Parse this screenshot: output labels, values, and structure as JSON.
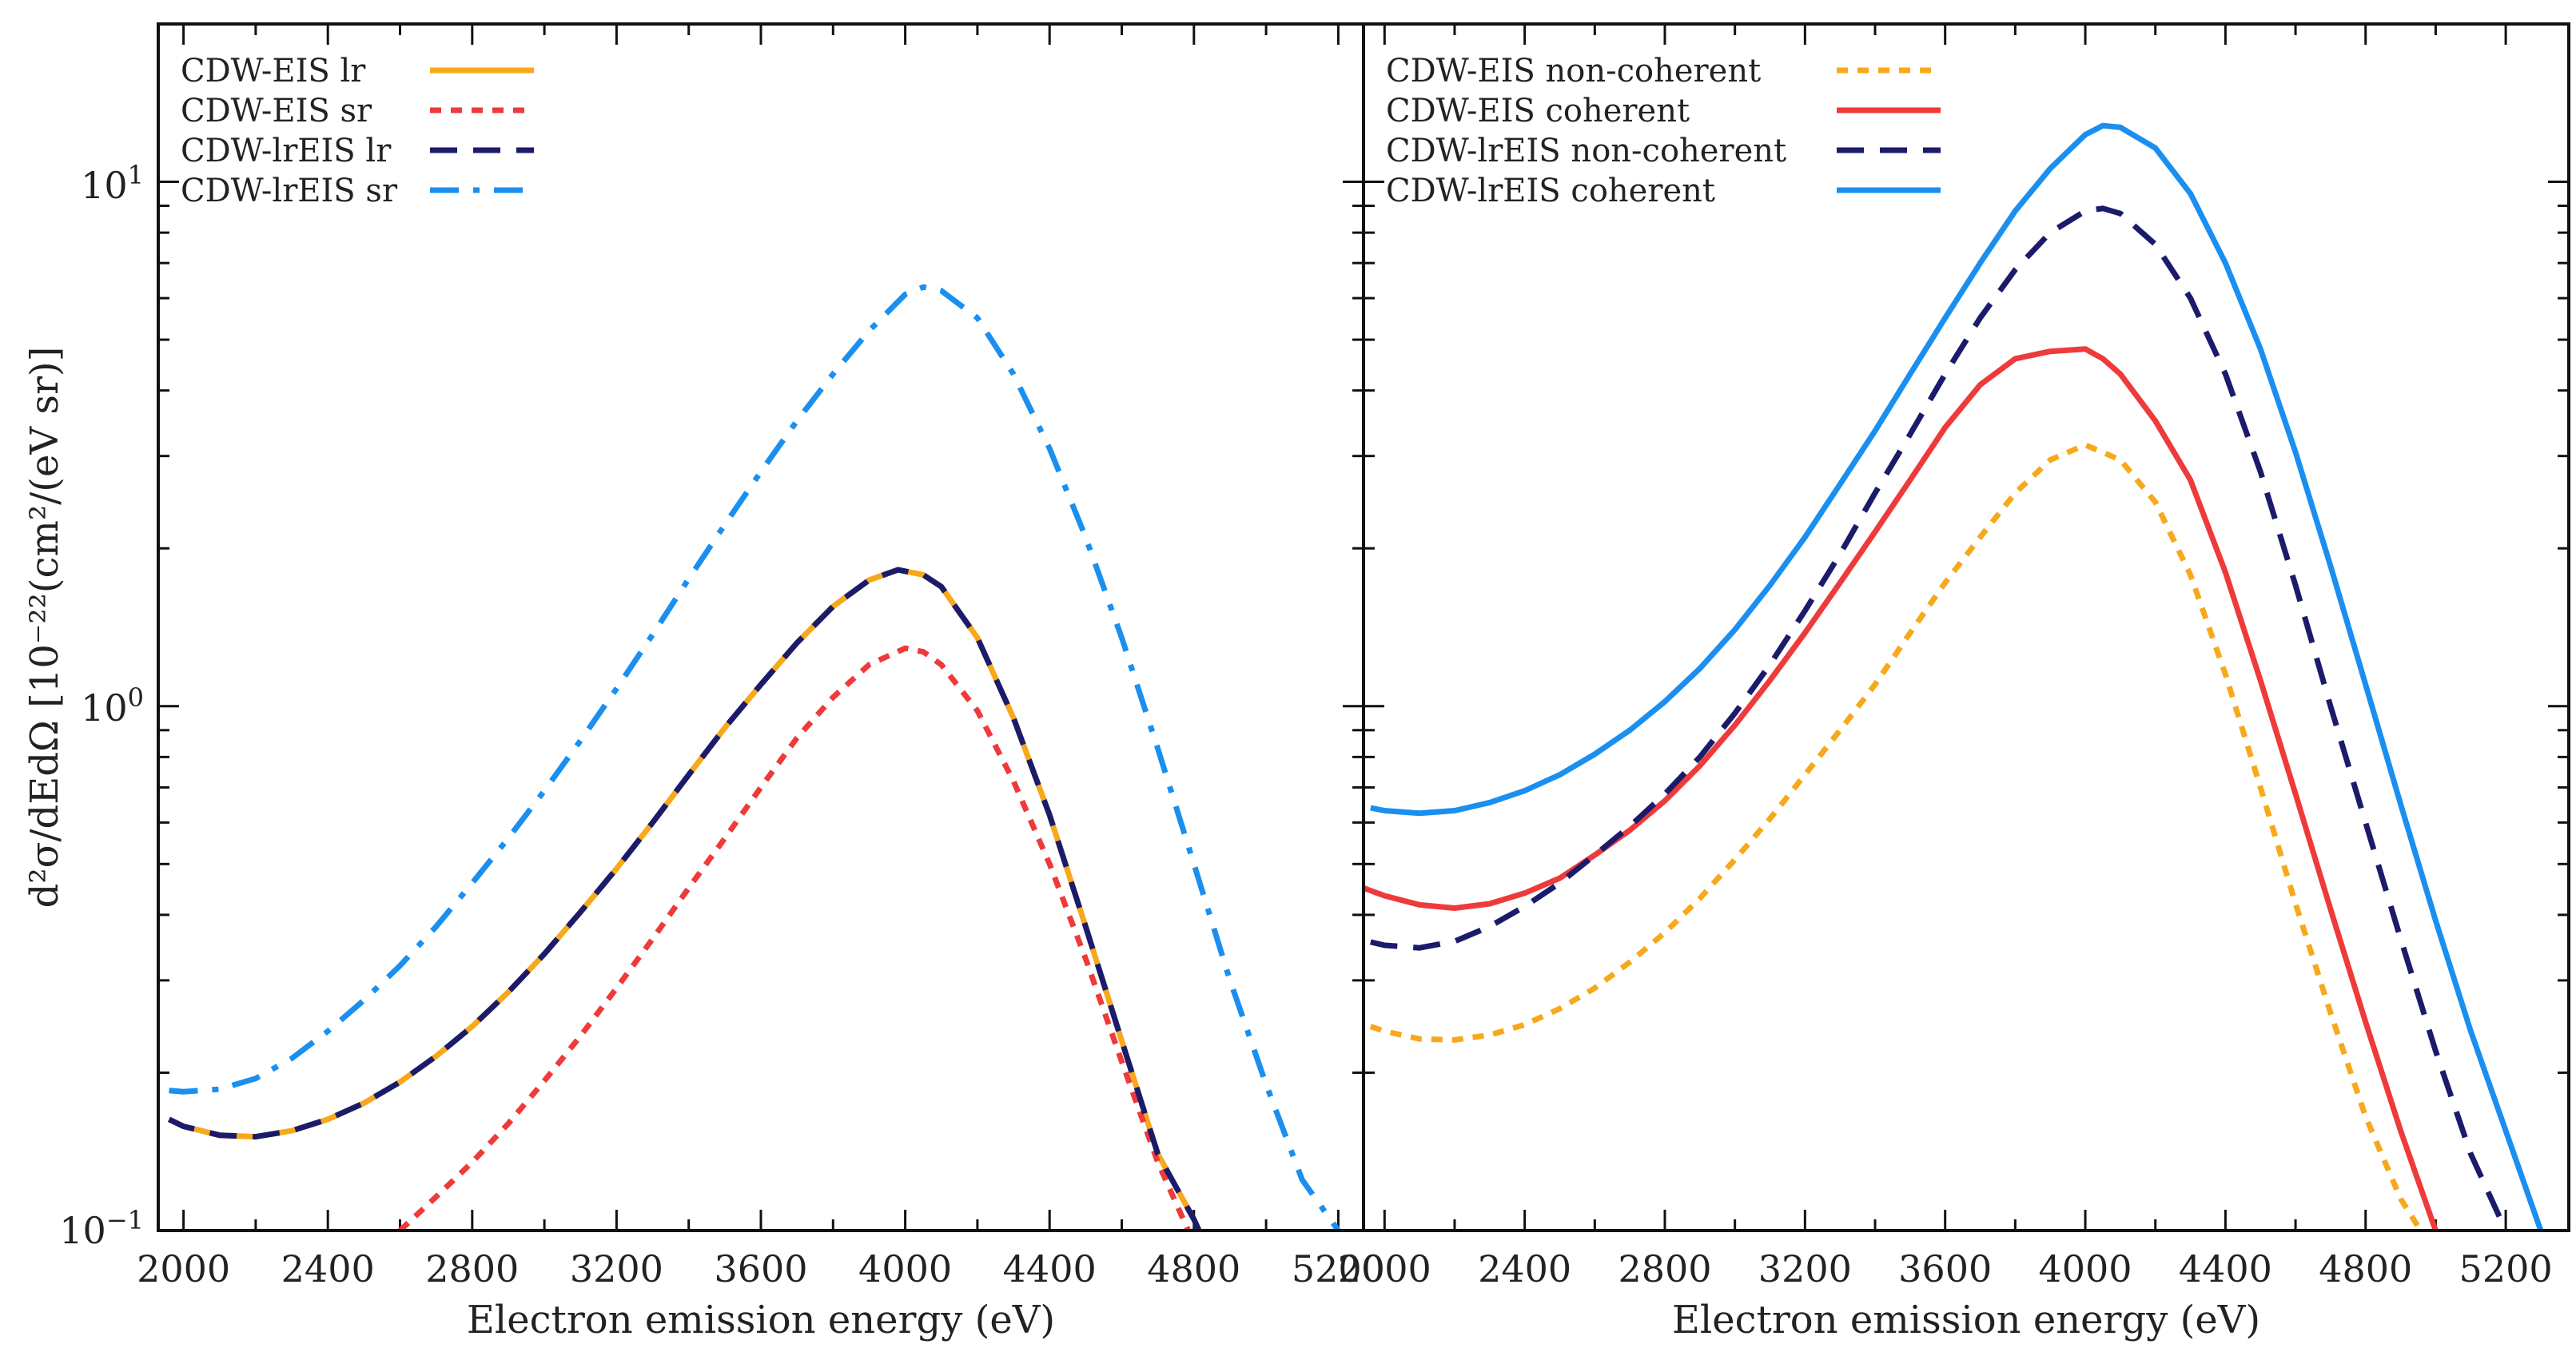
{
  "figure": {
    "ylabel": "d²σ/dEdΩ [10⁻²²(cm²/(eV sr)]",
    "yticks": [
      {
        "value": 0.1,
        "base": "10",
        "exp": "−1"
      },
      {
        "value": 1,
        "base": "10",
        "exp": "0"
      },
      {
        "value": 10,
        "base": "10",
        "exp": "1"
      }
    ],
    "colors": {
      "orange": "#f7a81b",
      "red": "#ee3a3a",
      "navy": "#1b1b6b",
      "sky": "#1a8ff0"
    }
  },
  "chart_data": [
    {
      "type": "line",
      "panel": "left",
      "title": "",
      "xlabel": "Electron emission energy (eV)",
      "ylabel": "d²σ/dEdΩ [10⁻²²(cm²/(eV sr)]",
      "xlim": [
        1930,
        5270
      ],
      "ylim": [
        0.1,
        20
      ],
      "yscale": "log",
      "xticks": [
        2000,
        2400,
        2800,
        3200,
        3600,
        4000,
        4400,
        4800,
        5200
      ],
      "legend_position": "top-left",
      "series": [
        {
          "name": "CDW-EIS lr",
          "color": "#f7a81b",
          "style": "solid",
          "x": [
            1960,
            2000,
            2100,
            2200,
            2300,
            2400,
            2500,
            2600,
            2700,
            2800,
            2900,
            3000,
            3100,
            3200,
            3300,
            3400,
            3500,
            3600,
            3700,
            3800,
            3900,
            3980,
            4050,
            4100,
            4200,
            4300,
            4400,
            4500,
            4600,
            4700,
            4800,
            4820
          ],
          "y": [
            0.163,
            0.158,
            0.152,
            0.151,
            0.155,
            0.163,
            0.175,
            0.192,
            0.215,
            0.245,
            0.285,
            0.337,
            0.405,
            0.49,
            0.6,
            0.74,
            0.91,
            1.1,
            1.32,
            1.55,
            1.74,
            1.82,
            1.78,
            1.69,
            1.35,
            0.95,
            0.62,
            0.38,
            0.23,
            0.14,
            0.105,
            0.098
          ]
        },
        {
          "name": "CDW-EIS sr",
          "color": "#ee3a3a",
          "style": "dotted",
          "x": [
            2600,
            2700,
            2800,
            2900,
            3000,
            3100,
            3200,
            3300,
            3400,
            3500,
            3600,
            3700,
            3800,
            3900,
            4000,
            4050,
            4100,
            4200,
            4300,
            4400,
            4500,
            4600,
            4700,
            4790
          ],
          "y": [
            0.1,
            0.116,
            0.135,
            0.16,
            0.193,
            0.235,
            0.29,
            0.36,
            0.45,
            0.56,
            0.7,
            0.87,
            1.04,
            1.2,
            1.29,
            1.27,
            1.2,
            0.98,
            0.72,
            0.5,
            0.33,
            0.21,
            0.135,
            0.098
          ]
        },
        {
          "name": "CDW-lrEIS lr",
          "color": "#1b1b6b",
          "style": "dashed",
          "x": [
            1960,
            2000,
            2100,
            2200,
            2300,
            2400,
            2500,
            2600,
            2700,
            2800,
            2900,
            3000,
            3100,
            3200,
            3300,
            3400,
            3500,
            3600,
            3700,
            3800,
            3900,
            3980,
            4050,
            4100,
            4200,
            4300,
            4400,
            4500,
            4600,
            4700,
            4800,
            4820
          ],
          "y": [
            0.163,
            0.158,
            0.152,
            0.151,
            0.155,
            0.163,
            0.175,
            0.192,
            0.215,
            0.245,
            0.285,
            0.337,
            0.405,
            0.49,
            0.6,
            0.74,
            0.91,
            1.1,
            1.32,
            1.55,
            1.74,
            1.82,
            1.78,
            1.69,
            1.35,
            0.95,
            0.62,
            0.38,
            0.23,
            0.14,
            0.105,
            0.098
          ]
        },
        {
          "name": "CDW-lrEIS sr",
          "color": "#1a8ff0",
          "style": "dashdot",
          "x": [
            1960,
            2000,
            2100,
            2200,
            2300,
            2400,
            2500,
            2600,
            2700,
            2800,
            2900,
            3000,
            3100,
            3200,
            3300,
            3400,
            3500,
            3600,
            3700,
            3800,
            3900,
            4000,
            4050,
            4100,
            4200,
            4300,
            4400,
            4500,
            4600,
            4700,
            4800,
            4900,
            5000,
            5100,
            5200,
            5230
          ],
          "y": [
            0.185,
            0.184,
            0.186,
            0.195,
            0.213,
            0.24,
            0.275,
            0.32,
            0.38,
            0.46,
            0.56,
            0.69,
            0.86,
            1.08,
            1.37,
            1.75,
            2.22,
            2.8,
            3.5,
            4.3,
            5.2,
            6.1,
            6.3,
            6.2,
            5.5,
            4.3,
            3.1,
            2.1,
            1.35,
            0.83,
            0.5,
            0.3,
            0.19,
            0.125,
            0.1,
            0.095
          ]
        }
      ]
    },
    {
      "type": "line",
      "panel": "right",
      "title": "",
      "xlabel": "Electron emission energy (eV)",
      "ylabel": "",
      "xlim": [
        1940,
        5380
      ],
      "ylim": [
        0.1,
        20
      ],
      "yscale": "log",
      "xticks": [
        2000,
        2400,
        2800,
        3200,
        3600,
        4000,
        4400,
        4800,
        5200
      ],
      "legend_position": "top-left",
      "series": [
        {
          "name": "CDW-EIS non-coherent",
          "color": "#f7a81b",
          "style": "dotted",
          "x": [
            1960,
            2000,
            2100,
            2200,
            2300,
            2400,
            2500,
            2600,
            2700,
            2800,
            2900,
            3000,
            3100,
            3200,
            3300,
            3400,
            3500,
            3600,
            3700,
            3800,
            3900,
            4000,
            4100,
            4200,
            4300,
            4400,
            4500,
            4600,
            4700,
            4800,
            4900,
            5000
          ],
          "y": [
            0.245,
            0.24,
            0.232,
            0.231,
            0.236,
            0.247,
            0.265,
            0.29,
            0.325,
            0.37,
            0.43,
            0.51,
            0.61,
            0.74,
            0.9,
            1.1,
            1.38,
            1.72,
            2.1,
            2.55,
            2.95,
            3.15,
            2.95,
            2.45,
            1.78,
            1.15,
            0.7,
            0.42,
            0.26,
            0.165,
            0.115,
            0.09
          ]
        },
        {
          "name": "CDW-EIS coherent",
          "color": "#ee3a3a",
          "style": "solid",
          "x": [
            1940,
            2000,
            2100,
            2200,
            2300,
            2400,
            2500,
            2600,
            2700,
            2800,
            2900,
            3000,
            3100,
            3200,
            3300,
            3400,
            3500,
            3600,
            3700,
            3800,
            3900,
            4000,
            4050,
            4100,
            4200,
            4300,
            4400,
            4500,
            4600,
            4700,
            4800,
            4900,
            5000,
            5050
          ],
          "y": [
            0.45,
            0.435,
            0.418,
            0.412,
            0.42,
            0.44,
            0.47,
            0.52,
            0.58,
            0.66,
            0.77,
            0.92,
            1.12,
            1.38,
            1.72,
            2.15,
            2.7,
            3.4,
            4.1,
            4.6,
            4.75,
            4.8,
            4.6,
            4.3,
            3.5,
            2.7,
            1.8,
            1.12,
            0.68,
            0.41,
            0.25,
            0.155,
            0.1,
            0.085
          ]
        },
        {
          "name": "CDW-lrEIS non-coherent",
          "color": "#1b1b6b",
          "style": "dashed",
          "x": [
            1960,
            2000,
            2100,
            2200,
            2300,
            2400,
            2500,
            2600,
            2700,
            2800,
            2900,
            3000,
            3100,
            3200,
            3300,
            3400,
            3500,
            3600,
            3700,
            3800,
            3900,
            4000,
            4050,
            4100,
            4200,
            4300,
            4400,
            4500,
            4600,
            4700,
            4800,
            4900,
            5000,
            5100,
            5200,
            5250
          ],
          "y": [
            0.355,
            0.35,
            0.346,
            0.356,
            0.38,
            0.415,
            0.46,
            0.52,
            0.59,
            0.68,
            0.8,
            0.97,
            1.2,
            1.52,
            1.95,
            2.55,
            3.3,
            4.3,
            5.5,
            6.8,
            8.0,
            8.8,
            8.9,
            8.7,
            7.6,
            6.0,
            4.3,
            2.8,
            1.7,
            1.0,
            0.6,
            0.36,
            0.22,
            0.14,
            0.1,
            0.09
          ]
        },
        {
          "name": "CDW-lrEIS coherent",
          "color": "#1a8ff0",
          "style": "solid",
          "x": [
            1960,
            2000,
            2100,
            2200,
            2300,
            2400,
            2500,
            2600,
            2700,
            2800,
            2900,
            3000,
            3100,
            3200,
            3300,
            3400,
            3500,
            3600,
            3700,
            3800,
            3900,
            4000,
            4050,
            4100,
            4200,
            4300,
            4400,
            4500,
            4600,
            4700,
            4800,
            4900,
            5000,
            5100,
            5200,
            5300,
            5330
          ],
          "y": [
            0.64,
            0.632,
            0.625,
            0.632,
            0.655,
            0.69,
            0.74,
            0.81,
            0.9,
            1.02,
            1.18,
            1.4,
            1.7,
            2.1,
            2.65,
            3.35,
            4.3,
            5.5,
            7.0,
            8.8,
            10.6,
            12.3,
            12.8,
            12.7,
            11.6,
            9.5,
            7.0,
            4.8,
            3.05,
            1.85,
            1.1,
            0.65,
            0.39,
            0.24,
            0.155,
            0.1,
            0.095
          ]
        }
      ]
    }
  ]
}
